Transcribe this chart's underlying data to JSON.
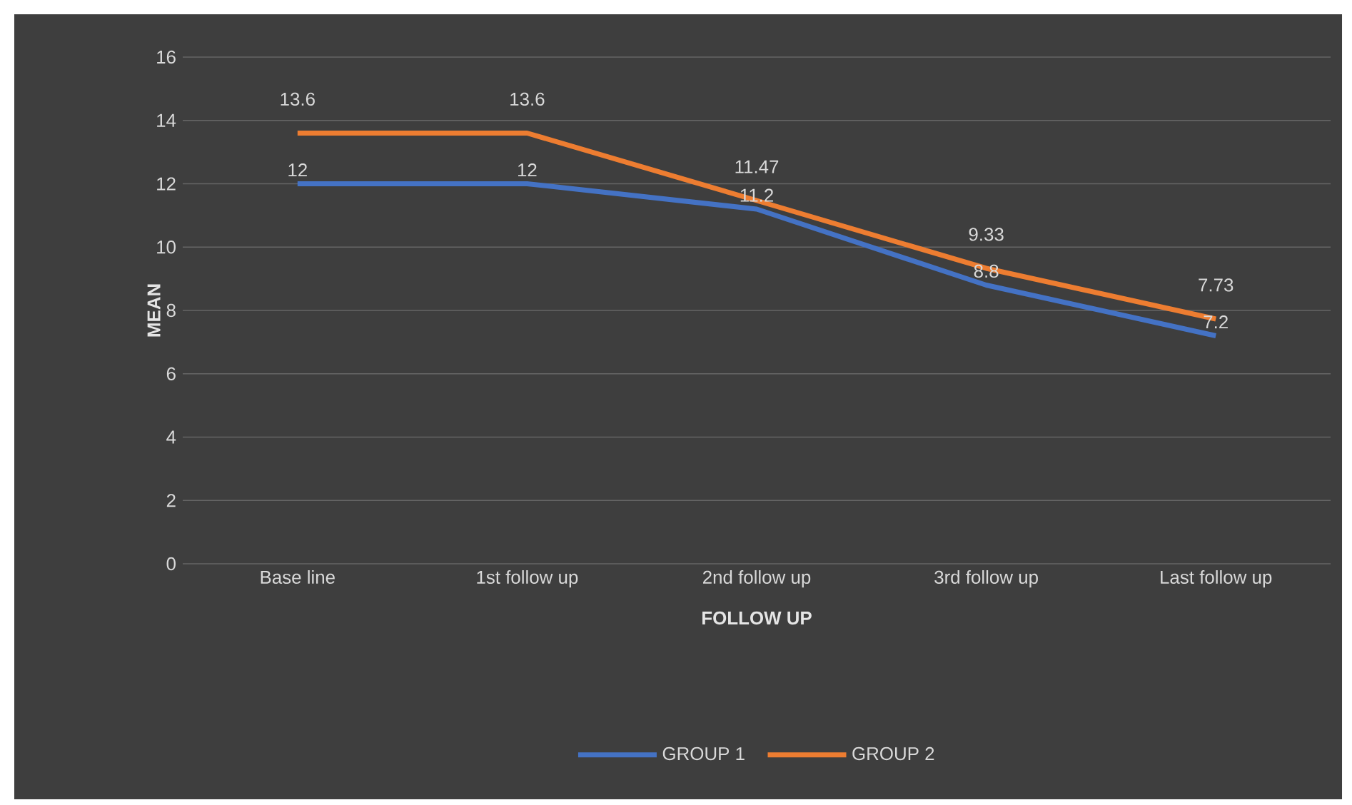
{
  "chart_data": {
    "type": "line",
    "xlabel": "FOLLOW UP",
    "ylabel": "MEAN",
    "categories": [
      "Base line",
      "1st  follow up",
      "2nd follow up",
      "3rd follow up",
      "Last follow up"
    ],
    "series": [
      {
        "name": "GROUP 1",
        "color": "#4472c4",
        "values": [
          12,
          12,
          11.2,
          8.8,
          7.2
        ]
      },
      {
        "name": "GROUP 2",
        "color": "#ed7d31",
        "values": [
          13.6,
          13.6,
          11.47,
          9.33,
          7.73
        ]
      }
    ],
    "ylim": [
      0,
      16
    ],
    "yticks": [
      0,
      2,
      4,
      6,
      8,
      10,
      12,
      14,
      16
    ],
    "grid": "y",
    "legend": "bottom",
    "data_labels": true
  }
}
